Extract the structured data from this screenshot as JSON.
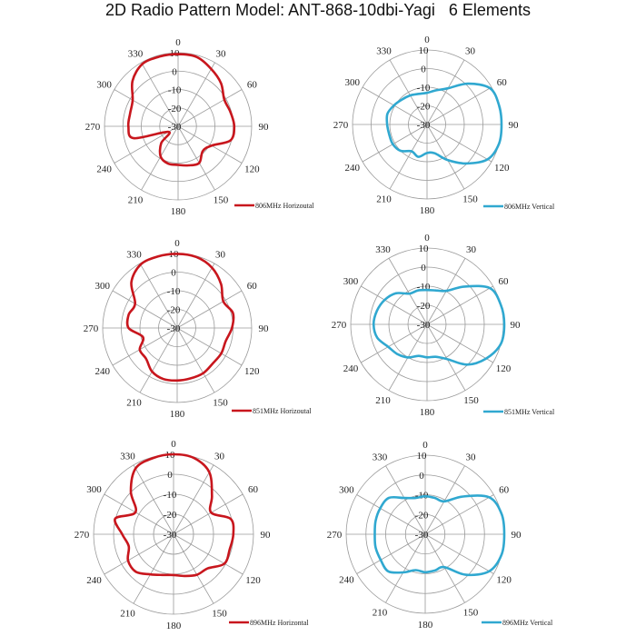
{
  "title": "2D Radio Pattern Model: ANT-868-10dbi-Yagi   6 Elements",
  "chart_data": [
    {
      "type": "polar",
      "series": [
        {
          "name": "806MHz Horizoutal",
          "color": "#c8161d",
          "angles": [
            0,
            15,
            30,
            45,
            60,
            75,
            90,
            105,
            120,
            135,
            150,
            165,
            180,
            195,
            210,
            225,
            240,
            255,
            270,
            285,
            300,
            315,
            330,
            345
          ],
          "values": [
            9.2,
            9,
            6,
            3,
            -1,
            -0.5,
            0.5,
            -0.5,
            -9,
            -11,
            -7,
            -8,
            -9,
            -9,
            -11,
            -17,
            -24,
            -5,
            -3,
            -3,
            -1.5,
            5,
            9,
            9.2
          ]
        }
      ],
      "rlim": [
        -30,
        10
      ],
      "ring_labels": [
        "10",
        "0",
        "-10",
        "-20",
        "-30"
      ],
      "angle_labels": [
        "0",
        "30",
        "60",
        "90",
        "120",
        "150",
        "180",
        "210",
        "240",
        "270",
        "300",
        "330"
      ],
      "legend": "bottom-right"
    },
    {
      "type": "polar",
      "series": [
        {
          "name": "806MHz Vertical",
          "color": "#30a8d0",
          "angles": [
            0,
            15,
            30,
            45,
            60,
            75,
            90,
            105,
            120,
            135,
            150,
            165,
            180,
            195,
            210,
            225,
            240,
            255,
            270,
            285,
            300,
            315,
            330,
            345
          ],
          "values": [
            -13,
            -11,
            -7.6,
            1,
            9,
            10,
            10,
            10,
            7.5,
            -0.4,
            -8,
            -14,
            -14.7,
            -12,
            -13.4,
            -10,
            -8.8,
            -9,
            -8.6,
            -8,
            -9.5,
            -11,
            -12,
            -13
          ]
        }
      ],
      "rlim": [
        -30,
        10
      ],
      "ring_labels": [
        "10",
        "0",
        "-10",
        "-20",
        "-30"
      ],
      "angle_labels": [
        "0",
        "30",
        "60",
        "90",
        "120",
        "150",
        "180",
        "210",
        "240",
        "270",
        "300",
        "330"
      ],
      "legend": "bottom-right"
    },
    {
      "type": "polar",
      "series": [
        {
          "name": "851MHz Horizoutal",
          "color": "#c8161d",
          "angles": [
            0,
            15,
            30,
            45,
            60,
            75,
            90,
            105,
            120,
            135,
            150,
            165,
            180,
            195,
            210,
            225,
            240,
            255,
            270,
            285,
            300,
            315,
            330,
            345
          ],
          "values": [
            9.8,
            9.5,
            7.4,
            3.3,
            -1.4,
            1,
            -0.6,
            -3,
            -2.7,
            -3,
            -2,
            -2,
            -1.8,
            -1.6,
            -3,
            -6.5,
            -6.8,
            -11,
            -3.9,
            -3,
            -3.9,
            4.8,
            9.3,
            9.8
          ]
        }
      ],
      "rlim": [
        -30,
        10
      ],
      "ring_labels": [
        "10",
        "0",
        "-10",
        "-20",
        "-30"
      ],
      "angle_labels": [
        "0",
        "30",
        "60",
        "90",
        "120",
        "150",
        "180",
        "210",
        "240",
        "270",
        "300",
        "330"
      ],
      "legend": "bottom-right"
    },
    {
      "type": "polar",
      "series": [
        {
          "name": "851MHz Vertical",
          "color": "#30a8d0",
          "angles": [
            0,
            15,
            30,
            45,
            60,
            75,
            90,
            105,
            120,
            135,
            150,
            165,
            180,
            195,
            210,
            225,
            240,
            255,
            270,
            285,
            300,
            315,
            330,
            345
          ],
          "values": [
            -12,
            -11.6,
            -9.7,
            -2,
            8,
            10,
            10.5,
            10,
            5.8,
            -0.2,
            -9,
            -12.4,
            -12.7,
            -12.9,
            -10,
            -8,
            -6.5,
            -3,
            -2,
            -2.8,
            -4.4,
            -7,
            -11.4,
            -11.6
          ]
        }
      ],
      "rlim": [
        -30,
        10
      ],
      "ring_labels": [
        "10",
        "0",
        "-10",
        "-20",
        "-30"
      ],
      "angle_labels": [
        "0",
        "30",
        "60",
        "90",
        "120",
        "150",
        "180",
        "210",
        "240",
        "270",
        "300",
        "330"
      ],
      "legend": "bottom-right"
    },
    {
      "type": "polar",
      "series": [
        {
          "name": "896MHz Horizontal",
          "color": "#c8161d",
          "angles": [
            0,
            15,
            30,
            45,
            60,
            75,
            90,
            105,
            120,
            135,
            150,
            165,
            180,
            195,
            210,
            225,
            240,
            255,
            270,
            285,
            300,
            315,
            330,
            345
          ],
          "values": [
            10,
            9.5,
            5.8,
            -2.8,
            -8.3,
            -0.4,
            -0.1,
            -0.9,
            -0.6,
            -5.8,
            -6.6,
            -8.4,
            -9.6,
            -8.9,
            -6.8,
            -3.4,
            -3.7,
            -6.8,
            -4.3,
            0.2,
            -8,
            0.2,
            8,
            9.5
          ]
        }
      ],
      "rlim": [
        -30,
        10
      ],
      "ring_labels": [
        "10",
        "0",
        "-10",
        "-20",
        "-30"
      ],
      "angle_labels": [
        "0",
        "30",
        "60",
        "90",
        "120",
        "150",
        "180",
        "210",
        "240",
        "270",
        "300",
        "330"
      ],
      "legend": "bottom-right"
    },
    {
      "type": "polar",
      "series": [
        {
          "name": "896MHz Vertical",
          "color": "#30a8d0",
          "angles": [
            0,
            15,
            30,
            45,
            60,
            75,
            90,
            105,
            120,
            135,
            150,
            165,
            180,
            195,
            210,
            225,
            240,
            255,
            270,
            285,
            300,
            315,
            330,
            345
          ],
          "values": [
            -10.8,
            -11,
            -10.8,
            -3,
            7.4,
            10,
            10,
            10,
            7.4,
            -1,
            -10.8,
            -11,
            -10.8,
            -11.2,
            -7.7,
            -3.5,
            -4,
            -4,
            -4.5,
            -4,
            -3.7,
            -4,
            -8.8,
            -11
          ]
        }
      ],
      "rlim": [
        -30,
        10
      ],
      "ring_labels": [
        "10",
        "0",
        "-10",
        "-20",
        "-30"
      ],
      "angle_labels": [
        "0",
        "30",
        "60",
        "90",
        "120",
        "150",
        "180",
        "210",
        "240",
        "270",
        "300",
        "330"
      ],
      "legend": "bottom-right"
    }
  ]
}
